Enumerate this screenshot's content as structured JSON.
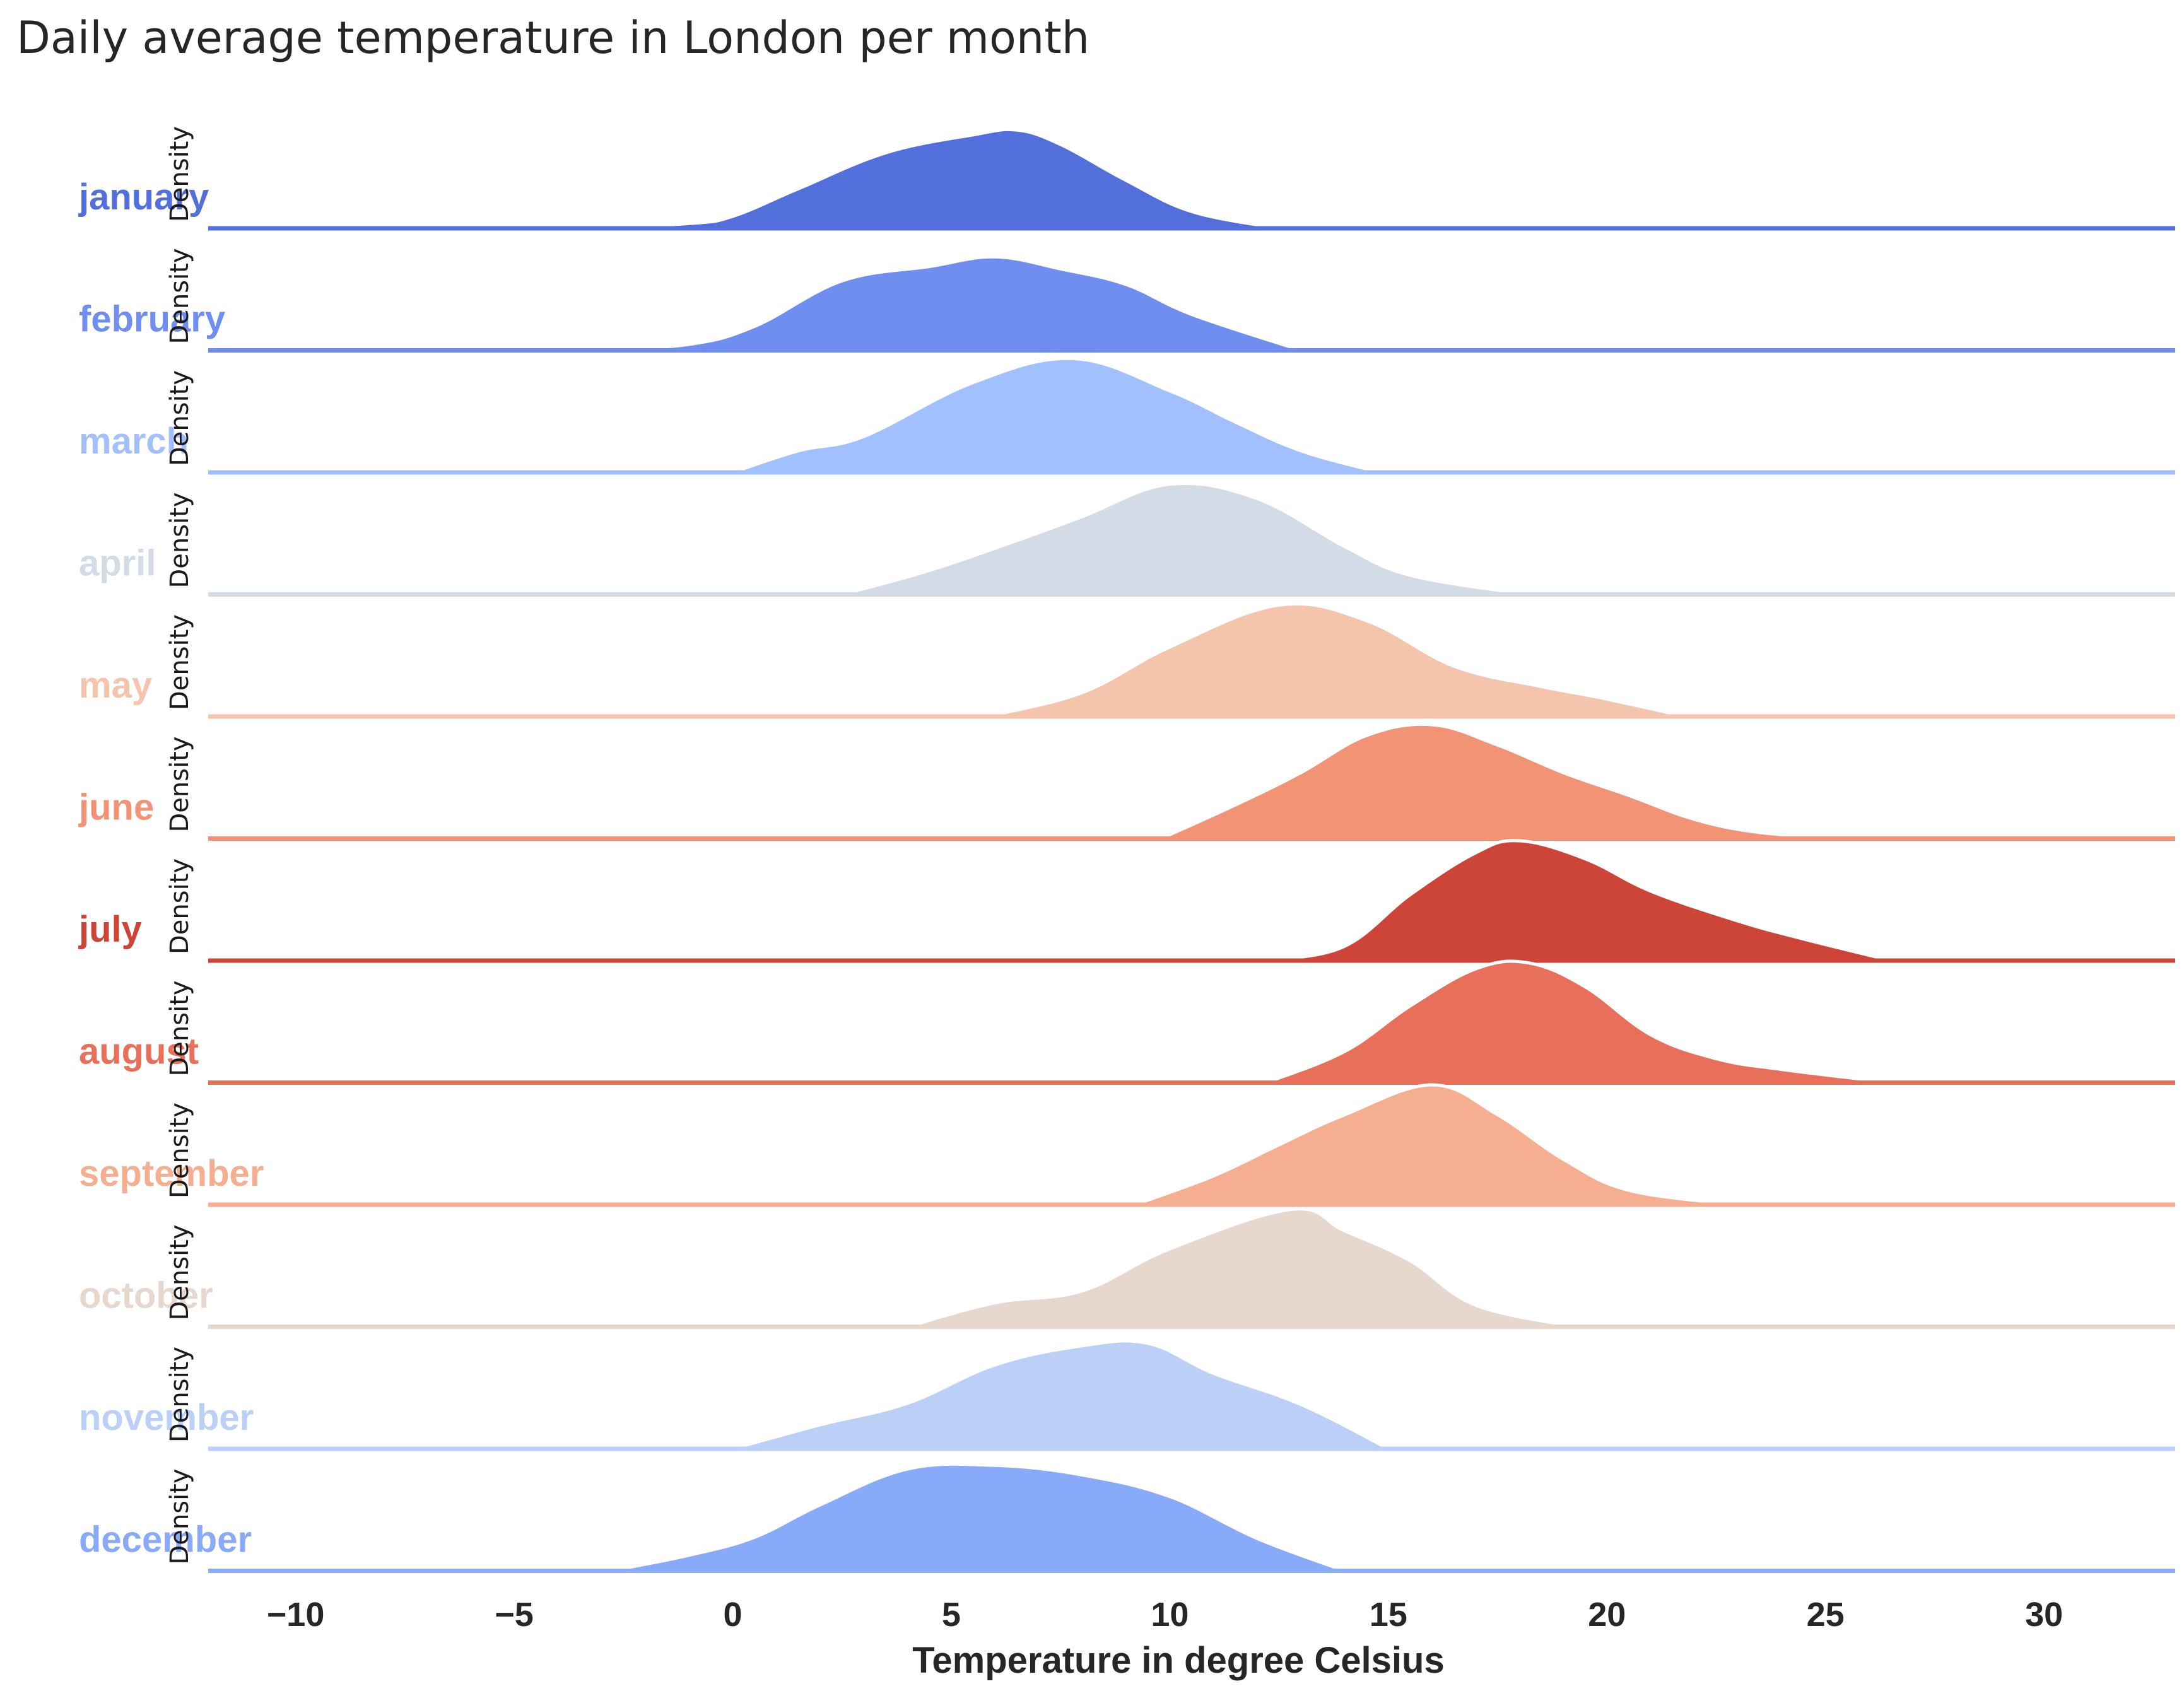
{
  "chart_data": {
    "type": "ridgeline",
    "title": "Daily average temperature in London per month",
    "xlabel": "Temperature in degree Celsius",
    "ylabel": "Density",
    "xlim": [
      -12,
      33
    ],
    "xticks": [
      -10,
      -5,
      0,
      5,
      10,
      15,
      20,
      25,
      30
    ],
    "xtick_labels": [
      "−10",
      "−5",
      "0",
      "5",
      "10",
      "15",
      "20",
      "25",
      "30"
    ],
    "grid": false,
    "series": [
      {
        "name": "january",
        "color": "#536fdc",
        "x": [
          -3.5,
          -1,
          0,
          1.5,
          3.5,
          5.5,
          6.5,
          7.5,
          9,
          10.5,
          12.5
        ],
        "density": [
          0,
          0.04,
          0.1,
          0.33,
          0.63,
          0.78,
          0.82,
          0.7,
          0.4,
          0.14,
          0
        ]
      },
      {
        "name": "february",
        "color": "#6f8eef",
        "x": [
          -3.2,
          -1,
          0.5,
          2.5,
          4.5,
          6,
          7.5,
          9,
          10.5,
          13
        ],
        "density": [
          0,
          0.05,
          0.2,
          0.58,
          0.7,
          0.78,
          0.68,
          0.55,
          0.3,
          0
        ]
      },
      {
        "name": "march",
        "color": "#a1c0fd",
        "x": [
          0,
          1.5,
          3,
          5.5,
          7.8,
          10,
          11.5,
          13,
          14.8
        ],
        "density": [
          0,
          0.18,
          0.3,
          0.75,
          0.95,
          0.68,
          0.42,
          0.18,
          0
        ]
      },
      {
        "name": "april",
        "color": "#d3dbe6",
        "x": [
          2.5,
          4.5,
          6.5,
          8,
          10,
          12,
          14,
          15.5,
          18.2
        ],
        "density": [
          0,
          0.2,
          0.45,
          0.65,
          0.92,
          0.8,
          0.4,
          0.16,
          0
        ]
      },
      {
        "name": "may",
        "color": "#f4c4ad",
        "x": [
          5.8,
          8,
          10,
          12.5,
          14.5,
          16.5,
          18.5,
          19.8,
          21.8
        ],
        "density": [
          0,
          0.2,
          0.58,
          0.93,
          0.8,
          0.42,
          0.25,
          0.16,
          0
        ]
      },
      {
        "name": "june",
        "color": "#f29376",
        "x": [
          9.8,
          11.5,
          13,
          14.5,
          16,
          17.5,
          19,
          20.5,
          22,
          23.5,
          25.5
        ],
        "density": [
          0,
          0.28,
          0.55,
          0.86,
          0.95,
          0.78,
          0.55,
          0.36,
          0.16,
          0.05,
          0
        ]
      },
      {
        "name": "july",
        "color": "#cd4539",
        "x": [
          12.3,
          14,
          15.5,
          17,
          18,
          19.5,
          21,
          23,
          24.5,
          26.5
        ],
        "density": [
          0,
          0.12,
          0.55,
          0.9,
          1.0,
          0.85,
          0.58,
          0.33,
          0.18,
          0
        ]
      },
      {
        "name": "august",
        "color": "#e8705a",
        "x": [
          12.2,
          14,
          15.5,
          17,
          18.2,
          19.5,
          21,
          22.5,
          24,
          26.5
        ],
        "density": [
          0,
          0.26,
          0.64,
          0.95,
          1.0,
          0.8,
          0.4,
          0.2,
          0.11,
          0
        ]
      },
      {
        "name": "september",
        "color": "#f6ae91",
        "x": [
          9.2,
          11,
          12.5,
          14,
          16,
          17.5,
          19,
          20.5,
          23
        ],
        "density": [
          0,
          0.24,
          0.5,
          0.75,
          1.0,
          0.75,
          0.38,
          0.12,
          0
        ]
      },
      {
        "name": "october",
        "color": "#e6d7cf",
        "x": [
          4,
          6,
          8,
          10,
          12.8,
          14,
          15.5,
          17,
          19.3
        ],
        "density": [
          0,
          0.2,
          0.3,
          0.65,
          0.98,
          0.8,
          0.55,
          0.18,
          0
        ]
      },
      {
        "name": "november",
        "color": "#bcd0f7",
        "x": [
          0,
          2,
          4,
          6,
          8,
          9.5,
          11,
          13,
          15
        ],
        "density": [
          0,
          0.2,
          0.38,
          0.7,
          0.86,
          0.88,
          0.63,
          0.37,
          0
        ]
      },
      {
        "name": "december",
        "color": "#88aaf9",
        "x": [
          -2.8,
          -1,
          0.5,
          2,
          4,
          6,
          8,
          10,
          12,
          14
        ],
        "density": [
          0,
          0.13,
          0.28,
          0.55,
          0.85,
          0.88,
          0.8,
          0.62,
          0.27,
          0
        ]
      }
    ]
  }
}
